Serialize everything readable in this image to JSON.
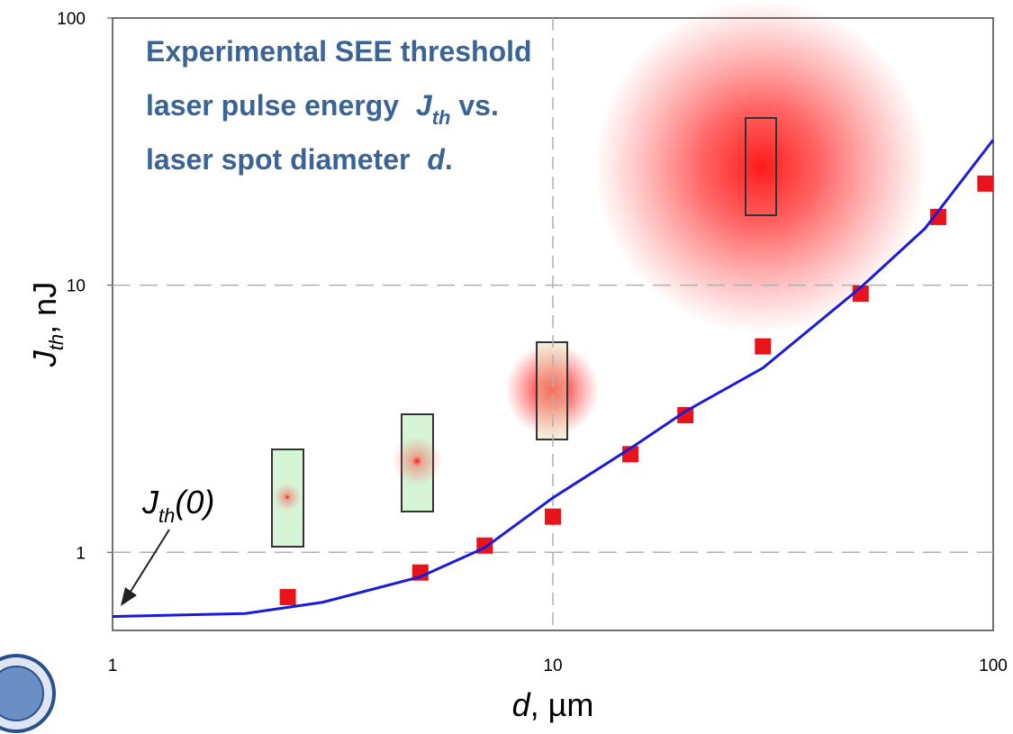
{
  "chart_data": {
    "type": "scatter",
    "title": [
      "Experimental SEE threshold",
      "laser pulse energy",
      "J",
      "th",
      "vs.",
      "laser spot diameter",
      "d",
      "."
    ],
    "x_label": [
      "d",
      ", µm"
    ],
    "y_label": [
      "J",
      "th",
      ", nJ"
    ],
    "annotation": [
      "J",
      "th",
      "(0)"
    ],
    "log_x": true,
    "log_y": true,
    "grid": true,
    "xlim": [
      1,
      100
    ],
    "xticks": [
      1,
      10,
      100
    ],
    "ylim": [
      0.51,
      100
    ],
    "yticks": [
      1,
      10,
      100
    ],
    "series": [
      {
        "type": "scatter",
        "color": "#e8141a",
        "x": [
          2.5,
          5,
          7,
          10,
          15,
          20,
          30,
          50,
          75,
          96
        ],
        "values": [
          0.68,
          0.84,
          1.06,
          1.36,
          2.33,
          3.26,
          5.9,
          9.3,
          18,
          24
        ]
      },
      {
        "type": "line",
        "color": "#1a1adb",
        "x": [
          1,
          2,
          3,
          5,
          7,
          10,
          15,
          20,
          30,
          50,
          70,
          100
        ],
        "values": [
          0.575,
          0.59,
          0.65,
          0.81,
          1.04,
          1.6,
          2.45,
          3.37,
          4.9,
          9.8,
          16.3,
          35
        ]
      }
    ]
  }
}
